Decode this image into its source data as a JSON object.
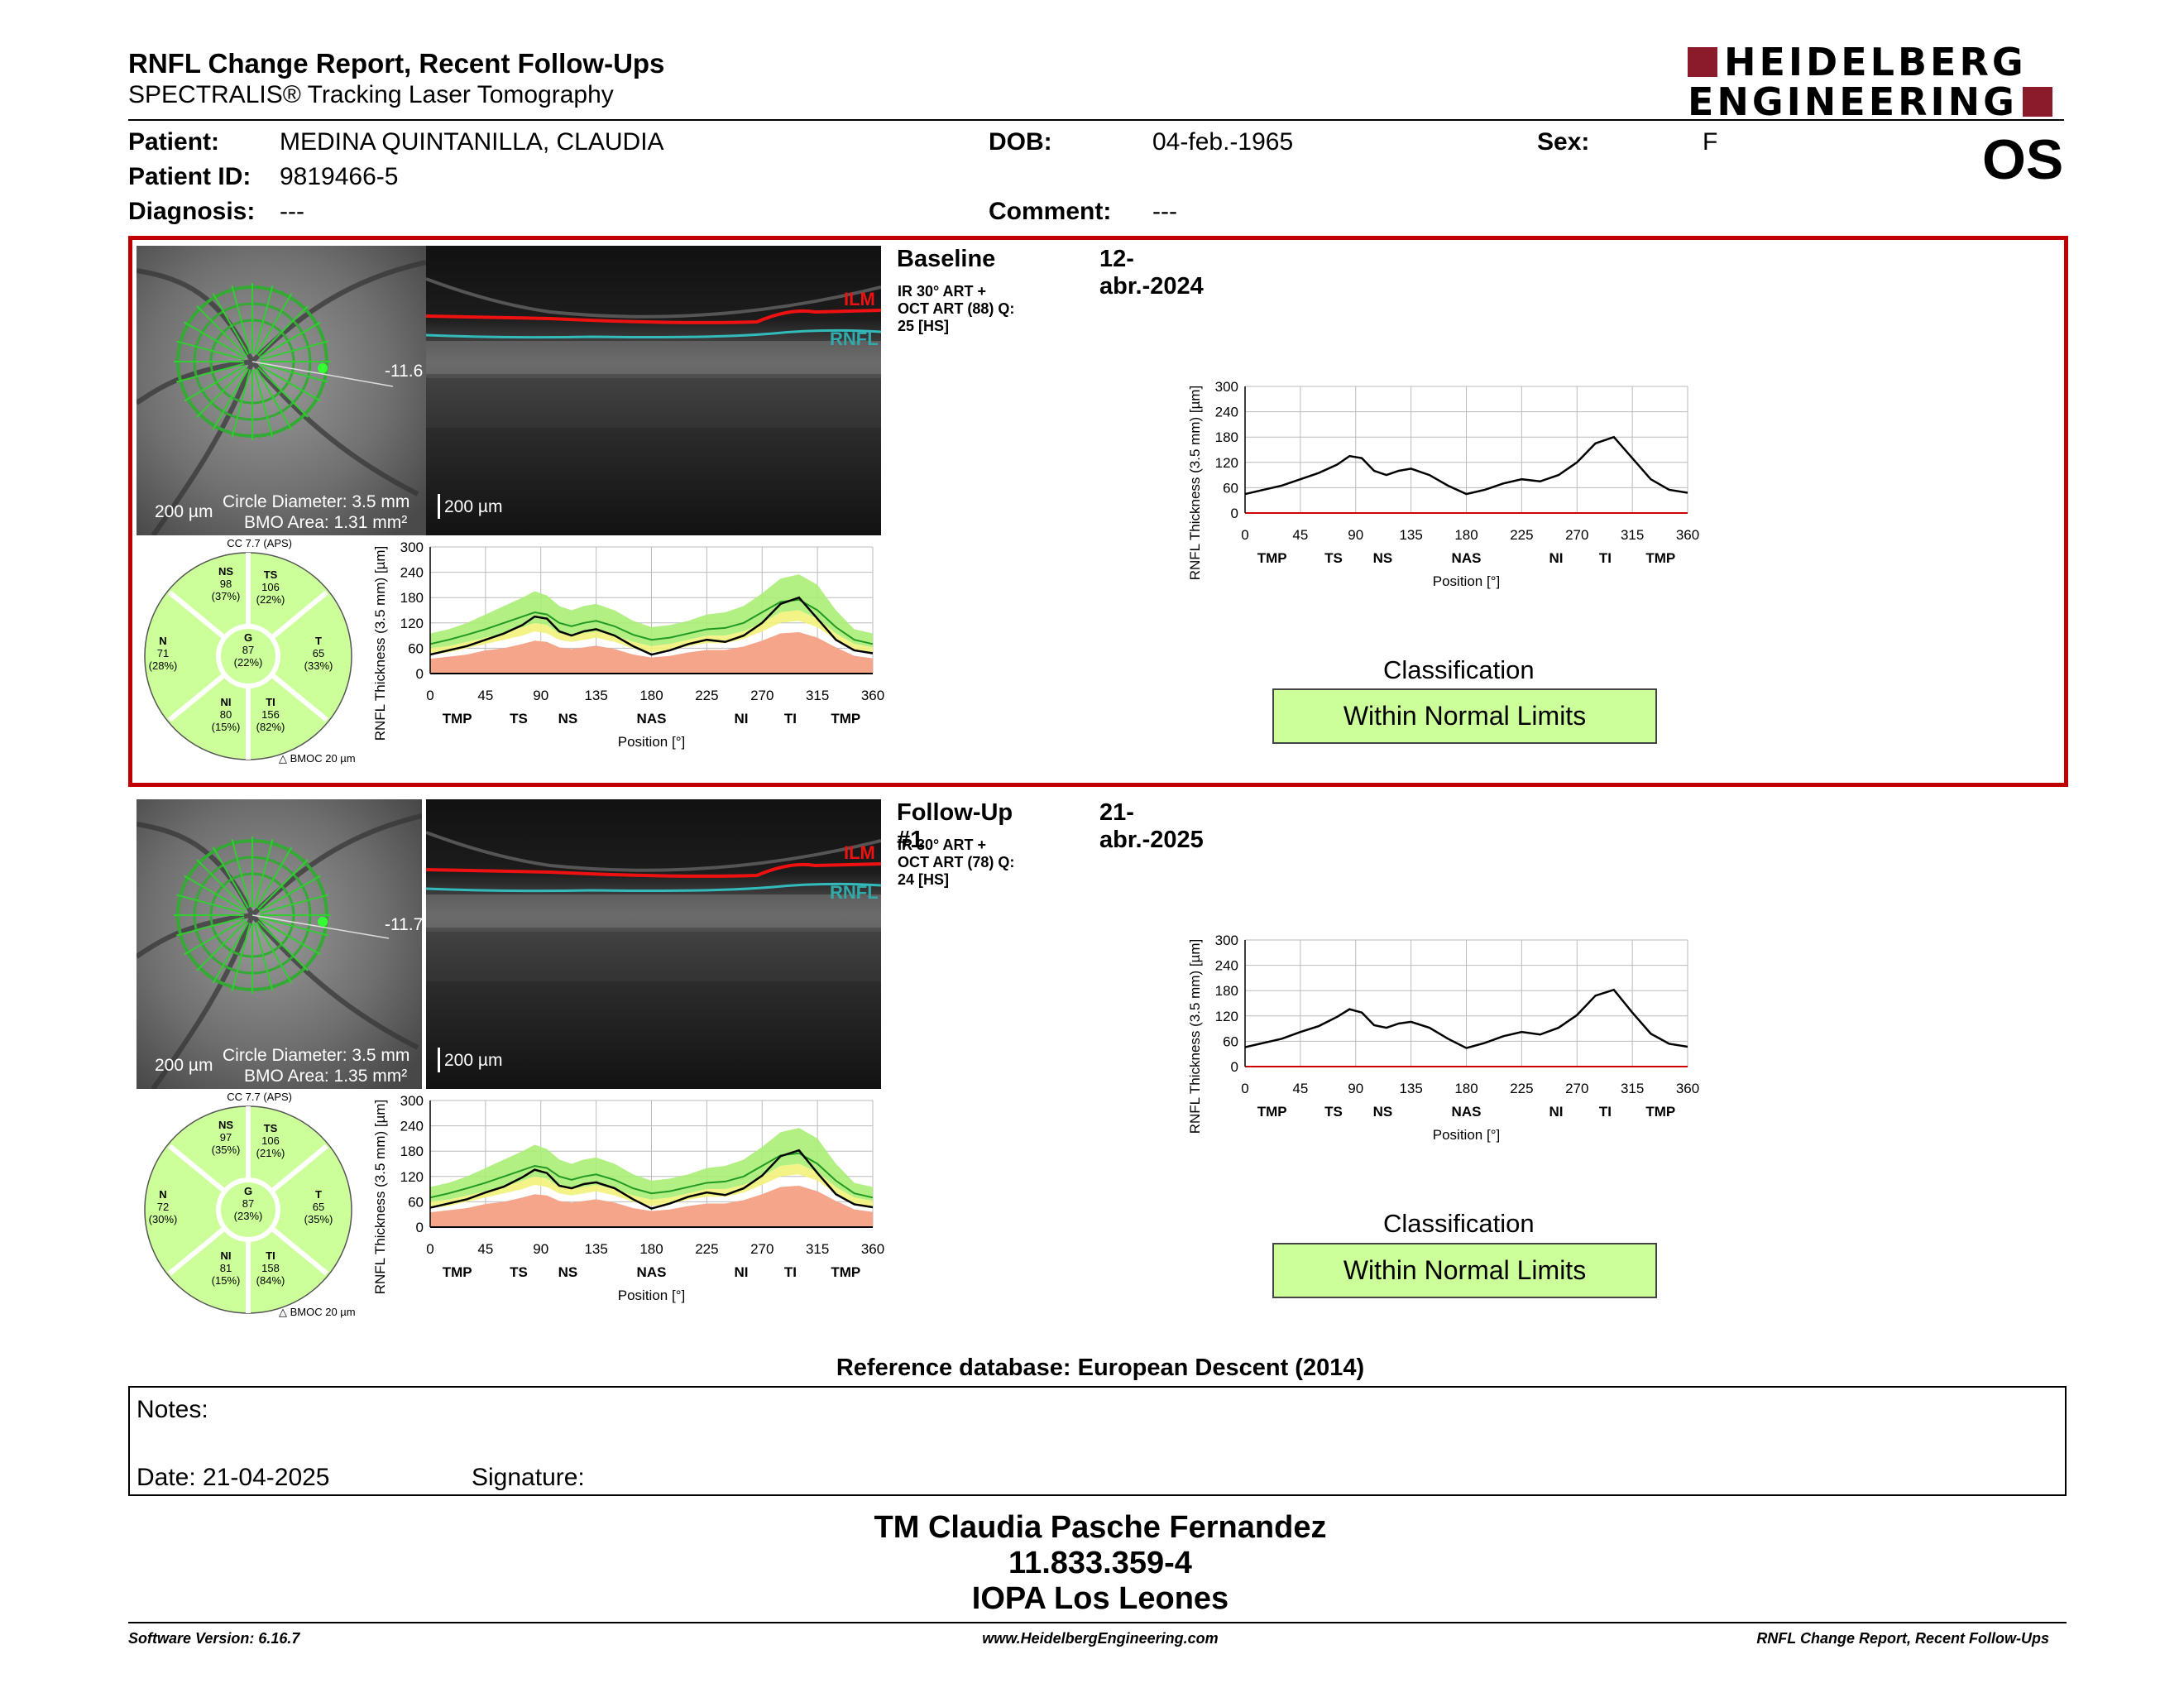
{
  "header": {
    "title": "RNFL Change Report, Recent Follow-Ups",
    "subtitle": "SPECTRALIS® Tracking Laser Tomography",
    "logo_line1": "HEIDELBERG",
    "logo_line2": "ENGINEERING",
    "eye": "OS",
    "brand_color": "#8b1a2b"
  },
  "patient": {
    "name_label": "Patient:",
    "name": "MEDINA QUINTANILLA, CLAUDIA",
    "id_label": "Patient ID:",
    "id": "9819466-5",
    "diagnosis_label": "Diagnosis:",
    "diagnosis": "---",
    "dob_label": "DOB:",
    "dob": "04-feb.-1965",
    "comment_label": "Comment:",
    "comment": "---",
    "sex_label": "Sex:",
    "sex": "F"
  },
  "exams": [
    {
      "label": "Baseline",
      "date": "12-abr.-2024",
      "scan_info": "IR 30° ART + OCT ART (88) Q: 25 [HS]",
      "fundus_scale": "200 µm",
      "circle_diameter": "Circle Diameter: 3.5 mm",
      "bmo_area": "BMO Area: 1.31 mm²",
      "angle_label": "-11.6",
      "oct_scale": "200 µm",
      "ilm": "ILM",
      "rnfl": "RNFL",
      "cc": "CC 7.7 (APS)",
      "bmoc": "BMOC 20 µm",
      "sectors": {
        "NS": {
          "label": "NS",
          "value": "98",
          "pct": "(37%)"
        },
        "TS": {
          "label": "TS",
          "value": "106",
          "pct": "(22%)"
        },
        "N": {
          "label": "N",
          "value": "71",
          "pct": "(28%)"
        },
        "G": {
          "label": "G",
          "value": "87",
          "pct": "(22%)"
        },
        "T": {
          "label": "T",
          "value": "65",
          "pct": "(33%)"
        },
        "NI": {
          "label": "NI",
          "value": "80",
          "pct": "(15%)"
        },
        "TI": {
          "label": "TI",
          "value": "156",
          "pct": "(82%)"
        }
      },
      "classification_label": "Classification",
      "classification": "Within Normal Limits",
      "highlighted": true
    },
    {
      "label": "Follow-Up #1",
      "date": "21-abr.-2025",
      "scan_info": "IR 30° ART + OCT ART (78) Q: 24 [HS]",
      "fundus_scale": "200 µm",
      "circle_diameter": "Circle Diameter: 3.5 mm",
      "bmo_area": "BMO Area: 1.35 mm²",
      "angle_label": "-11.7",
      "oct_scale": "200 µm",
      "ilm": "ILM",
      "rnfl": "RNFL",
      "cc": "CC 7.7 (APS)",
      "bmoc": "BMOC 20 µm",
      "sectors": {
        "NS": {
          "label": "NS",
          "value": "97",
          "pct": "(35%)"
        },
        "TS": {
          "label": "TS",
          "value": "106",
          "pct": "(21%)"
        },
        "N": {
          "label": "N",
          "value": "72",
          "pct": "(30%)"
        },
        "G": {
          "label": "G",
          "value": "87",
          "pct": "(23%)"
        },
        "T": {
          "label": "T",
          "value": "65",
          "pct": "(35%)"
        },
        "NI": {
          "label": "NI",
          "value": "81",
          "pct": "(15%)"
        },
        "TI": {
          "label": "TI",
          "value": "158",
          "pct": "(84%)"
        }
      },
      "classification_label": "Classification",
      "classification": "Within Normal Limits",
      "highlighted": false
    }
  ],
  "chart_data": [
    {
      "type": "line",
      "title": "",
      "xlabel": "Position [°]",
      "ylabel": "RNFL Thickness (3.5 mm) [µm]",
      "xlim": [
        0,
        360
      ],
      "ylim": [
        0,
        300
      ],
      "xticks": [
        0,
        45,
        90,
        135,
        180,
        225,
        270,
        315,
        360
      ],
      "yticks": [
        0,
        60,
        120,
        180,
        240,
        300
      ],
      "sector_labels": [
        "TMP",
        "TS",
        "NS",
        "NAS",
        "NI",
        "TI",
        "TMP"
      ],
      "x": [
        0,
        15,
        30,
        45,
        60,
        75,
        85,
        95,
        105,
        115,
        125,
        135,
        150,
        165,
        180,
        195,
        210,
        225,
        240,
        255,
        270,
        285,
        300,
        315,
        330,
        345,
        360
      ],
      "series": [
        {
          "values": [
            45,
            55,
            65,
            80,
            95,
            115,
            135,
            130,
            100,
            90,
            100,
            105,
            90,
            65,
            45,
            55,
            70,
            80,
            75,
            90,
            120,
            165,
            180,
            130,
            80,
            55,
            48
          ]
        }
      ],
      "normative_upper": [
        95,
        105,
        120,
        140,
        160,
        180,
        195,
        185,
        160,
        150,
        160,
        165,
        150,
        125,
        110,
        115,
        125,
        140,
        145,
        160,
        190,
        225,
        235,
        210,
        150,
        105,
        95
      ],
      "normative_green_low": [
        60,
        65,
        75,
        85,
        95,
        110,
        120,
        115,
        95,
        90,
        95,
        100,
        90,
        75,
        65,
        70,
        80,
        90,
        90,
        100,
        120,
        145,
        150,
        130,
        95,
        70,
        62
      ],
      "normative_yellow_low": [
        45,
        50,
        60,
        70,
        80,
        90,
        100,
        95,
        80,
        75,
        80,
        85,
        75,
        60,
        50,
        55,
        65,
        72,
        72,
        82,
        100,
        120,
        125,
        110,
        80,
        55,
        48
      ],
      "normative_red": [
        35,
        40,
        45,
        55,
        60,
        70,
        78,
        75,
        62,
        58,
        62,
        66,
        58,
        45,
        38,
        42,
        50,
        56,
        56,
        64,
        78,
        95,
        98,
        85,
        62,
        42,
        36
      ],
      "normative_mean": [
        70,
        80,
        92,
        105,
        120,
        135,
        145,
        140,
        120,
        112,
        120,
        125,
        112,
        92,
        80,
        85,
        95,
        105,
        108,
        120,
        145,
        170,
        175,
        150,
        110,
        80,
        70
      ]
    },
    {
      "type": "line",
      "title": "",
      "xlabel": "Position [°]",
      "ylabel": "RNFL Thickness (3.5 mm) [µm]",
      "xlim": [
        0,
        360
      ],
      "ylim": [
        0,
        300
      ],
      "xticks": [
        0,
        45,
        90,
        135,
        180,
        225,
        270,
        315,
        360
      ],
      "yticks": [
        0,
        60,
        120,
        180,
        240,
        300
      ],
      "sector_labels": [
        "TMP",
        "TS",
        "NS",
        "NAS",
        "NI",
        "TI",
        "TMP"
      ],
      "x": [
        0,
        15,
        30,
        45,
        60,
        75,
        85,
        95,
        105,
        115,
        125,
        135,
        150,
        165,
        180,
        195,
        210,
        225,
        240,
        255,
        270,
        285,
        300,
        315,
        330,
        345,
        360
      ],
      "series": [
        {
          "values": [
            46,
            56,
            66,
            82,
            96,
            118,
            136,
            128,
            98,
            92,
            102,
            106,
            92,
            66,
            44,
            56,
            72,
            82,
            76,
            92,
            122,
            168,
            182,
            128,
            78,
            54,
            47
          ]
        }
      ],
      "normative_upper": [
        95,
        105,
        120,
        140,
        160,
        180,
        195,
        185,
        160,
        150,
        160,
        165,
        150,
        125,
        110,
        115,
        125,
        140,
        145,
        160,
        190,
        225,
        235,
        210,
        150,
        105,
        95
      ],
      "normative_green_low": [
        60,
        65,
        75,
        85,
        95,
        110,
        120,
        115,
        95,
        90,
        95,
        100,
        90,
        75,
        65,
        70,
        80,
        90,
        90,
        100,
        120,
        145,
        150,
        130,
        95,
        70,
        62
      ],
      "normative_yellow_low": [
        45,
        50,
        60,
        70,
        80,
        90,
        100,
        95,
        80,
        75,
        80,
        85,
        75,
        60,
        50,
        55,
        65,
        72,
        72,
        82,
        100,
        120,
        125,
        110,
        80,
        55,
        48
      ],
      "normative_red": [
        35,
        40,
        45,
        55,
        60,
        70,
        78,
        75,
        62,
        58,
        62,
        66,
        58,
        45,
        38,
        42,
        50,
        56,
        56,
        64,
        78,
        95,
        98,
        85,
        62,
        42,
        36
      ],
      "normative_mean": [
        70,
        80,
        92,
        105,
        120,
        135,
        145,
        140,
        120,
        112,
        120,
        125,
        112,
        92,
        80,
        85,
        95,
        105,
        108,
        120,
        145,
        170,
        175,
        150,
        110,
        80,
        70
      ]
    },
    {
      "type": "line",
      "title": "",
      "xlabel": "Position [°]",
      "ylabel": "RNFL Thickness (3.5 mm) [µm]",
      "xlim": [
        0,
        360
      ],
      "ylim": [
        0,
        300
      ],
      "xticks": [
        0,
        45,
        90,
        135,
        180,
        225,
        270,
        315,
        360
      ],
      "yticks": [
        0,
        60,
        120,
        180,
        240,
        300
      ],
      "sector_labels": [
        "TMP",
        "TS",
        "NS",
        "NAS",
        "NI",
        "TI",
        "TMP"
      ],
      "x": [
        0,
        15,
        30,
        45,
        60,
        75,
        85,
        95,
        105,
        115,
        125,
        135,
        150,
        165,
        180,
        195,
        210,
        225,
        240,
        255,
        270,
        285,
        300,
        315,
        330,
        345,
        360
      ],
      "series": [
        {
          "values": [
            45,
            55,
            65,
            80,
            95,
            115,
            135,
            130,
            100,
            90,
            100,
            105,
            90,
            65,
            45,
            55,
            70,
            80,
            75,
            90,
            120,
            165,
            180,
            130,
            80,
            55,
            48
          ]
        }
      ]
    },
    {
      "type": "line",
      "title": "",
      "xlabel": "Position [°]",
      "ylabel": "RNFL Thickness (3.5 mm) [µm]",
      "xlim": [
        0,
        360
      ],
      "ylim": [
        0,
        300
      ],
      "xticks": [
        0,
        45,
        90,
        135,
        180,
        225,
        270,
        315,
        360
      ],
      "yticks": [
        0,
        60,
        120,
        180,
        240,
        300
      ],
      "sector_labels": [
        "TMP",
        "TS",
        "NS",
        "NAS",
        "NI",
        "TI",
        "TMP"
      ],
      "x": [
        0,
        15,
        30,
        45,
        60,
        75,
        85,
        95,
        105,
        115,
        125,
        135,
        150,
        165,
        180,
        195,
        210,
        225,
        240,
        255,
        270,
        285,
        300,
        315,
        330,
        345,
        360
      ],
      "series": [
        {
          "values": [
            46,
            56,
            66,
            82,
            96,
            118,
            136,
            128,
            98,
            92,
            102,
            106,
            92,
            66,
            44,
            56,
            72,
            82,
            76,
            92,
            122,
            168,
            182,
            128,
            78,
            54,
            47
          ]
        }
      ]
    }
  ],
  "reference_db": "Reference database: European Descent (2014)",
  "notes": {
    "notes_label": "Notes:",
    "date_label": "Date: 21-04-2025",
    "signature_label": "Signature:"
  },
  "footer": {
    "line1": "TM Claudia Pasche Fernandez",
    "line2": "11.833.359-4",
    "line3": "IOPA Los Leones",
    "software": "Software Version: 6.16.7",
    "website": "www.HeidelbergEngineering.com",
    "report_name": "RNFL Change Report, Recent Follow-Ups"
  }
}
